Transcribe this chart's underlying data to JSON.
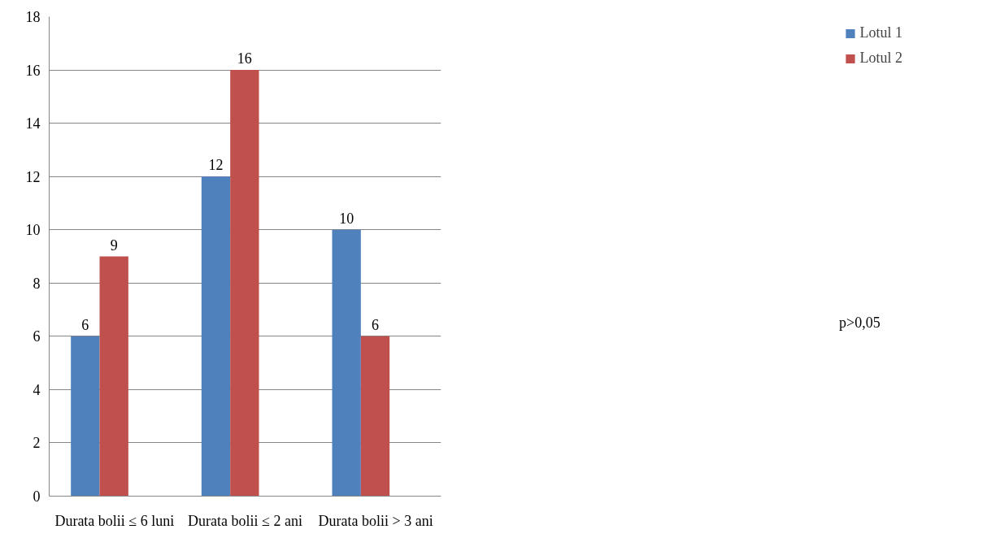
{
  "chart_data": {
    "type": "bar",
    "categories": [
      "Durata bolii ≤ 6 luni",
      "Durata bolii ≤ 2 ani",
      "Durata bolii > 3 ani"
    ],
    "series": [
      {
        "name": "Lotul 1",
        "color": "#4f81bd",
        "values": [
          6,
          12,
          10
        ]
      },
      {
        "name": "Lotul 2",
        "color": "#c0504d",
        "values": [
          9,
          16,
          6
        ]
      }
    ],
    "ylim": [
      0,
      18
    ],
    "yticks": [
      0,
      2,
      4,
      6,
      8,
      10,
      12,
      14,
      16,
      18
    ],
    "grid": "y",
    "legend": "right",
    "data_labels": true,
    "annotations": [
      "p>0,05"
    ]
  }
}
